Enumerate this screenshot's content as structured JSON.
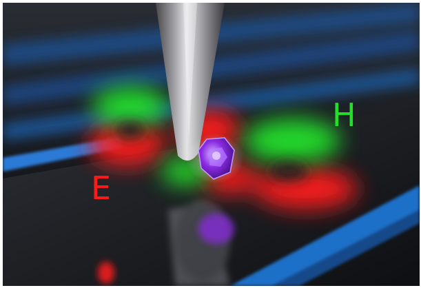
{
  "labels": {
    "e": "E",
    "h": "H"
  },
  "colors": {
    "electric_field": "#ff1a1a",
    "magnetic_field": "#22e02a",
    "emitter": "#8a2be2",
    "substrate_stripes": "#1f6fc8",
    "tip": "#a9a9a9"
  },
  "icons": {
    "probe": "probe-tip-icon",
    "emitter": "quantum-emitter-icon"
  }
}
